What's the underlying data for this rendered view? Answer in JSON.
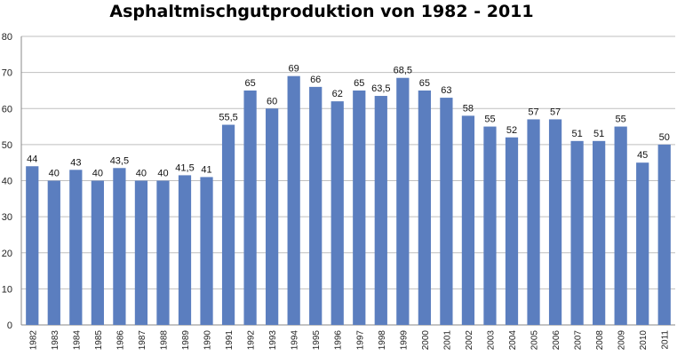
{
  "chart_data": {
    "type": "bar",
    "title": "Asphaltmischgutproduktion von 1982 - 2011",
    "xlabel": "",
    "ylabel": "",
    "categories": [
      "1982",
      "1983",
      "1984",
      "1985",
      "1986",
      "1987",
      "1988",
      "1989",
      "1990",
      "1991",
      "1992",
      "1993",
      "1994",
      "1995",
      "1996",
      "1997",
      "1998",
      "1999",
      "2000",
      "2001",
      "2002",
      "2003",
      "2004",
      "2005",
      "2006",
      "2007",
      "2008",
      "2009",
      "2010",
      "2011"
    ],
    "values": [
      44,
      40,
      43,
      40,
      43.5,
      40,
      40,
      41.5,
      41,
      55.5,
      65,
      60,
      69,
      66,
      62,
      65,
      63.5,
      68.5,
      65,
      63,
      58,
      55,
      52,
      57,
      57,
      51,
      51,
      55,
      45,
      50
    ],
    "data_labels": [
      "44",
      "40",
      "43",
      "40",
      "43,5",
      "40",
      "40",
      "41,5",
      "41",
      "55,5",
      "65",
      "60",
      "69",
      "66",
      "62",
      "65",
      "63,5",
      "68,5",
      "65",
      "63",
      "58",
      "55",
      "52",
      "57",
      "57",
      "51",
      "51",
      "55",
      "45",
      "50"
    ],
    "ylim": [
      0,
      80
    ],
    "yticks": [
      "0",
      "10",
      "20",
      "30",
      "40",
      "50",
      "60",
      "70",
      "80"
    ],
    "grid": true,
    "legend": "none",
    "bar_color": "#5B7EBF",
    "grid_color": "#BFBFBF"
  }
}
